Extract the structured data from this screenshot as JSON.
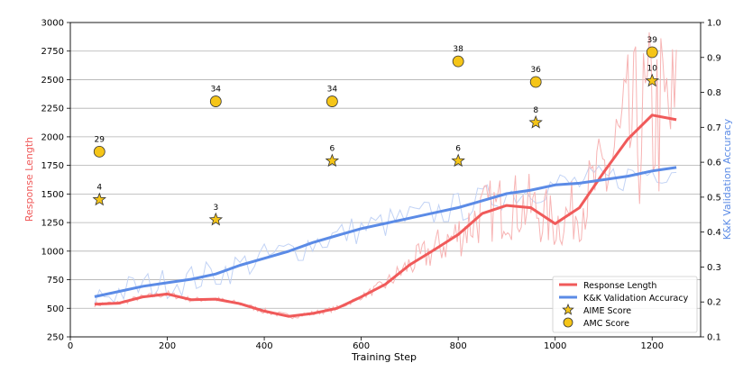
{
  "chart_data": {
    "type": "line",
    "title": "",
    "xlabel": "Training Step",
    "ylabel_left": "Response Length",
    "ylabel_right": "K&K Validation Accuracy",
    "xlim": [
      0,
      1300
    ],
    "ylim_left": [
      250,
      3000
    ],
    "ylim_right": [
      0.1,
      1.0
    ],
    "x_ticks": [
      0,
      200,
      400,
      600,
      800,
      1000,
      1200
    ],
    "y_ticks_left": [
      250,
      500,
      750,
      1000,
      1250,
      1500,
      1750,
      2000,
      2250,
      2500,
      2750,
      3000
    ],
    "y_ticks_right": [
      "0.1",
      "0.2",
      "0.3",
      "0.4",
      "0.5",
      "0.6",
      "0.7",
      "0.8",
      "0.9",
      "1.0"
    ],
    "grid": "horizontal",
    "legend_position": "bottom-right",
    "colors": {
      "response": "#f05a5a",
      "response_raw": "#f7b4b4",
      "accuracy": "#5b8be6",
      "accuracy_raw": "#c2d3f5",
      "marker_fill": "#f5c518",
      "marker_stroke": "#333333",
      "grid": "#b0b0b0",
      "axis": "#000000"
    },
    "series": [
      {
        "name": "Response Length",
        "axis": "left",
        "x": [
          50,
          100,
          150,
          200,
          250,
          300,
          350,
          400,
          450,
          500,
          550,
          600,
          650,
          700,
          750,
          800,
          850,
          900,
          950,
          1000,
          1050,
          1100,
          1150,
          1200,
          1250
        ],
        "values": [
          535,
          545,
          600,
          625,
          575,
          580,
          540,
          475,
          430,
          455,
          500,
          600,
          710,
          880,
          1010,
          1145,
          1330,
          1400,
          1380,
          1240,
          1380,
          1690,
          1980,
          2190,
          2150
        ]
      },
      {
        "name": "K&K Validation Accuracy",
        "axis": "right",
        "x": [
          50,
          100,
          150,
          200,
          250,
          300,
          350,
          400,
          450,
          500,
          550,
          600,
          650,
          700,
          750,
          800,
          850,
          900,
          950,
          1000,
          1050,
          1100,
          1150,
          1200,
          1250
        ],
        "values": [
          0.215,
          0.23,
          0.245,
          0.255,
          0.265,
          0.28,
          0.305,
          0.325,
          0.345,
          0.37,
          0.39,
          0.41,
          0.425,
          0.44,
          0.455,
          0.47,
          0.49,
          0.51,
          0.52,
          0.535,
          0.54,
          0.55,
          0.56,
          0.575,
          0.585
        ]
      },
      {
        "name": "AIME Score",
        "axis": "left",
        "marker": "star",
        "x": [
          60,
          300,
          540,
          800,
          960,
          1200
        ],
        "values": [
          1450,
          1275,
          1790,
          1790,
          2125,
          2490
        ],
        "labels": [
          "4",
          "3",
          "6",
          "6",
          "8",
          "10"
        ]
      },
      {
        "name": "AMC Score",
        "axis": "left",
        "marker": "circle",
        "x": [
          60,
          300,
          540,
          800,
          960,
          1200
        ],
        "values": [
          1870,
          2310,
          2310,
          2660,
          2480,
          2740
        ],
        "labels": [
          "29",
          "34",
          "34",
          "38",
          "36",
          "39"
        ]
      }
    ],
    "legend": [
      "Response Length",
      "K&K Validation Accuracy",
      "AIME Score",
      "AMC Score"
    ]
  }
}
